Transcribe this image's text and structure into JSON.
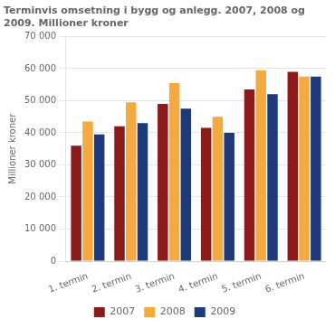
{
  "chart_data": {
    "type": "bar",
    "title": "Terminvis omsetning i bygg og anlegg. 2007, 2008 og\n2009. Millioner kroner",
    "ylabel": "Millioner kroner",
    "categories": [
      "1. termin",
      "2. termin",
      "3. termin",
      "4. termin",
      "5. termin",
      "6. termin"
    ],
    "series": [
      {
        "name": "2007",
        "color": "#8B1A1A",
        "values": [
          36000,
          42000,
          49000,
          41500,
          53500,
          59000
        ]
      },
      {
        "name": "2008",
        "color": "#F5A93E",
        "values": [
          43500,
          49500,
          55500,
          45000,
          59500,
          57500
        ]
      },
      {
        "name": "2009",
        "color": "#1F3A7A",
        "values": [
          39500,
          43000,
          47500,
          40000,
          52000,
          57500
        ]
      }
    ],
    "ylim": [
      0,
      70000
    ],
    "yticks": [
      0,
      {
        "value": 10000,
        "label": "10 000"
      },
      {
        "value": 20000,
        "label": "20 000"
      },
      {
        "value": 30000,
        "label": "30 000"
      },
      {
        "value": 40000,
        "label": "40 000"
      },
      {
        "value": 50000,
        "label": "50 000"
      },
      {
        "value": 60000,
        "label": "60 000"
      },
      {
        "value": 70000,
        "label": "70 000"
      }
    ],
    "grid": true,
    "legend": "bottom"
  }
}
